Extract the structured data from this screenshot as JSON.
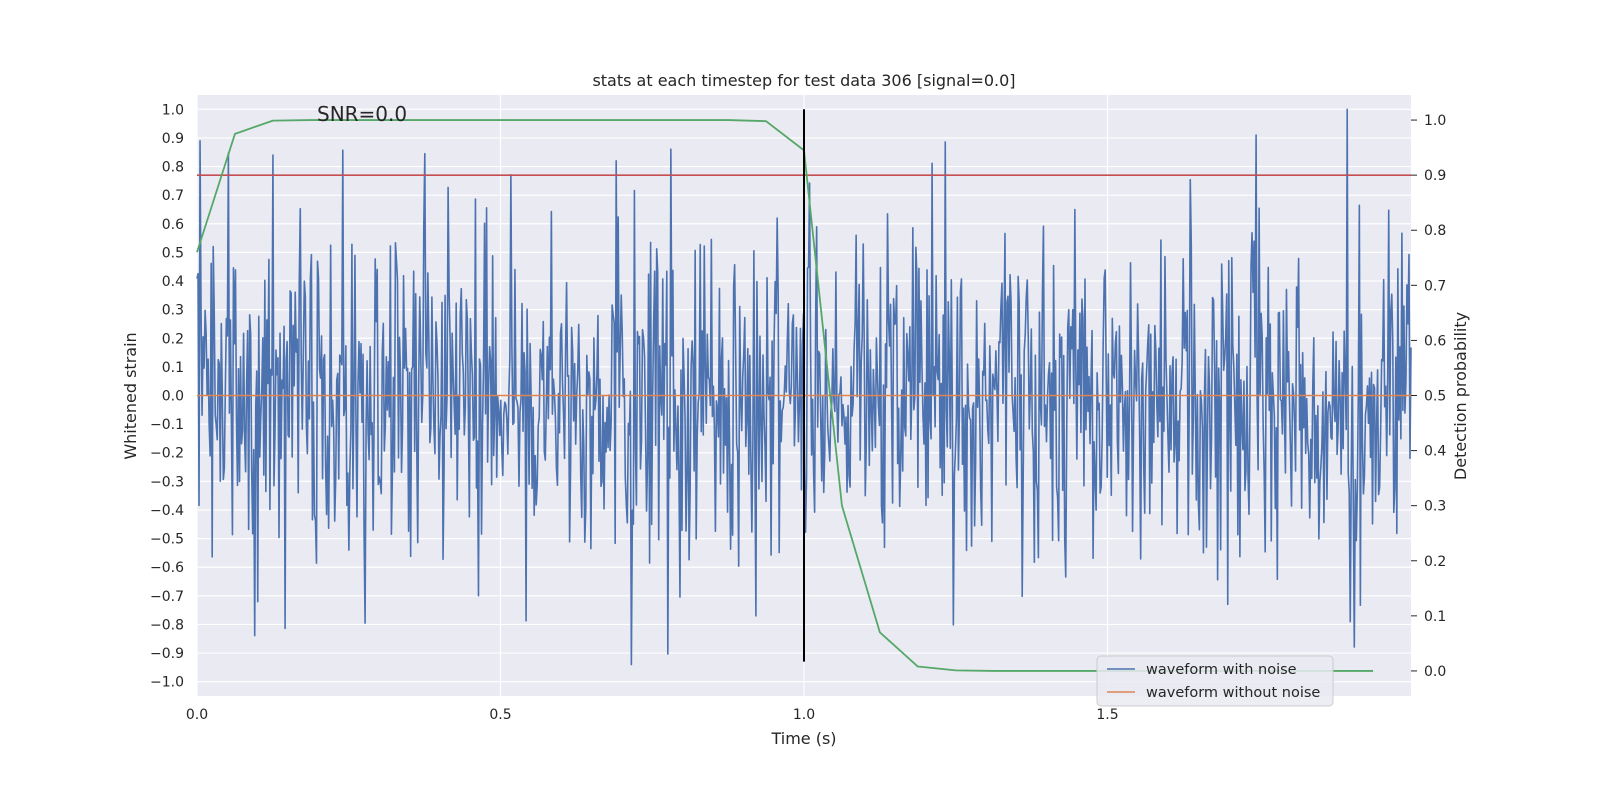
{
  "chart_data": {
    "type": "line",
    "title": "stats at each timestep for test data 306 [signal=0.0]",
    "annotation": "SNR=0.0",
    "xlabel": "Time (s)",
    "ylabel": "Whitened strain",
    "y2label": "Detection probability",
    "xlim": [
      0.0,
      2.0
    ],
    "ylim": [
      -1.05,
      1.05
    ],
    "y2lim": [
      -0.0455,
      1.0455
    ],
    "xticks": [
      "0.0",
      "0.5",
      "1.0",
      "1.5"
    ],
    "yticks": [
      "1.0",
      "0.9",
      "0.8",
      "0.7",
      "0.6",
      "0.5",
      "0.4",
      "0.3",
      "0.2",
      "0.1",
      "0.0",
      "−0.1",
      "−0.2",
      "−0.3",
      "−0.4",
      "−0.5",
      "−0.6",
      "−0.7",
      "−0.8",
      "−0.9",
      "−1.0"
    ],
    "y2ticks": [
      "1.0",
      "0.9",
      "0.8",
      "0.7",
      "0.6",
      "0.5",
      "0.4",
      "0.3",
      "0.2",
      "0.1",
      "0.0"
    ],
    "grid": true,
    "legend_position": "lower-right",
    "vertical_line": {
      "x": 1.0,
      "y_from": -0.93,
      "y_to": 1.0,
      "color": "#000000"
    },
    "threshold_line": {
      "axis": "secondary",
      "y": 0.9,
      "color": "#c44e52"
    },
    "series": [
      {
        "name": "waveform with noise",
        "axis": "primary",
        "color": "#4c72b0",
        "generator": {
          "kind": "noise-approximation",
          "n": 1200,
          "seed": 306,
          "sigma": 0.29,
          "min": -0.94,
          "max": 1.0
        },
        "peaks": [
          [
            0.005,
            0.89
          ],
          [
            0.125,
            0.84
          ],
          [
            0.69,
            0.82
          ],
          [
            1.745,
            0.91
          ],
          [
            1.895,
            1.0
          ],
          [
            0.715,
            -0.94
          ],
          [
            0.92,
            -0.77
          ],
          [
            1.9,
            -0.79
          ],
          [
            0.1,
            -0.72
          ]
        ]
      },
      {
        "name": "waveform without noise",
        "axis": "primary",
        "color": "#dd8452",
        "x": [
          0.0,
          2.0
        ],
        "y": [
          0.0,
          0.0
        ]
      },
      {
        "name": "detection probability",
        "axis": "secondary",
        "color": "#55a868",
        "x": [
          0.0,
          0.0625,
          0.125,
          0.1875,
          0.25,
          0.3125,
          0.375,
          0.4375,
          0.5,
          0.5625,
          0.625,
          0.6875,
          0.75,
          0.8125,
          0.875,
          0.9375,
          1.0,
          1.0625,
          1.125,
          1.1875,
          1.25,
          1.3125,
          1.375,
          1.4375,
          1.5,
          1.5625,
          1.625,
          1.6875,
          1.75,
          1.8125,
          1.875,
          1.9375
        ],
        "y": [
          0.76,
          0.975,
          0.999,
          1.0,
          1.0,
          1.0,
          1.0,
          1.0,
          1.0,
          1.0,
          1.0,
          1.0,
          1.0,
          1.0,
          1.0,
          0.998,
          0.945,
          0.3,
          0.07,
          0.008,
          0.001,
          0.0,
          0.0,
          0.0,
          0.0,
          0.0,
          0.0,
          0.0,
          0.0,
          0.0,
          0.0,
          0.0
        ]
      }
    ]
  }
}
